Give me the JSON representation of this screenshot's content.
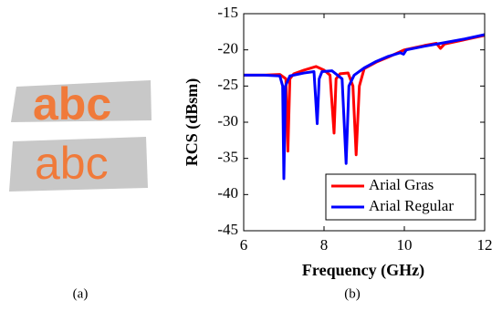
{
  "panel_a": {
    "words": [
      "abc",
      "abc"
    ],
    "caption": "(a)"
  },
  "chart_data": {
    "type": "line",
    "caption": "(b)",
    "xlabel": "Frequency (GHz)",
    "ylabel": "RCS (dBsm)",
    "xlim": [
      6,
      12
    ],
    "ylim": [
      -45,
      -15
    ],
    "xticks": [
      6,
      8,
      10,
      12
    ],
    "yticks": [
      -45,
      -40,
      -35,
      -30,
      -25,
      -20,
      -15
    ],
    "legend": "lower right",
    "grid": false,
    "series": [
      {
        "name": "Arial Gras",
        "color": "#ff0000",
        "x": [
          6,
          6.5,
          6.9,
          7.05,
          7.1,
          7.15,
          7.25,
          7.5,
          7.8,
          8.0,
          8.15,
          8.25,
          8.3,
          8.4,
          8.6,
          8.72,
          8.8,
          8.88,
          9.0,
          9.3,
          9.6,
          10.0,
          10.5,
          10.8,
          10.9,
          11.0,
          11.5,
          12
        ],
        "values": [
          -23.5,
          -23.5,
          -23.4,
          -24,
          -34,
          -24,
          -23.3,
          -22.8,
          -22.3,
          -22.8,
          -23.5,
          -31.5,
          -24,
          -23.3,
          -23.2,
          -25,
          -34.5,
          -25,
          -22.6,
          -21.7,
          -21,
          -20,
          -19.4,
          -19.1,
          -19.8,
          -19.2,
          -18.6,
          -18
        ]
      },
      {
        "name": "Arial Regular",
        "color": "#0000ff",
        "x": [
          6,
          6.5,
          6.9,
          6.97,
          7.0,
          7.04,
          7.15,
          7.5,
          7.75,
          7.83,
          7.88,
          7.95,
          8.2,
          8.45,
          8.55,
          8.62,
          8.75,
          9.0,
          9.3,
          9.6,
          9.9,
          9.98,
          10.05,
          10.5,
          11.0,
          11.5,
          12
        ],
        "values": [
          -23.5,
          -23.5,
          -23.6,
          -25,
          -37.8,
          -25,
          -23.6,
          -23.2,
          -23,
          -30.2,
          -24,
          -23,
          -22.9,
          -24,
          -35.7,
          -25,
          -23.5,
          -22.5,
          -21.6,
          -20.9,
          -20.4,
          -20.6,
          -20,
          -19.5,
          -19,
          -18.5,
          -17.9
        ]
      }
    ]
  }
}
